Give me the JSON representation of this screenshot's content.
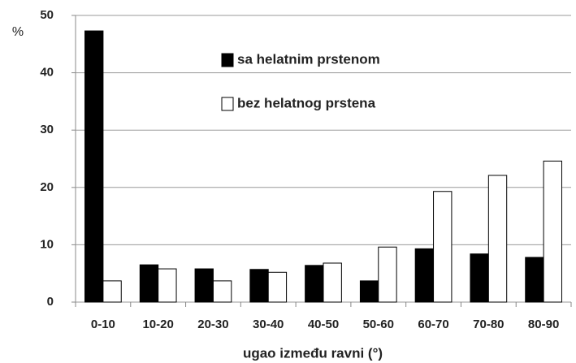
{
  "chart_data": {
    "type": "bar",
    "y_label": "%",
    "x_label": "ugao između ravni (°)",
    "categories": [
      "0-10",
      "10-20",
      "20-30",
      "30-40",
      "40-50",
      "50-60",
      "60-70",
      "70-80",
      "80-90"
    ],
    "series": [
      {
        "name": "sa helatnim prstenom",
        "color": "#000000",
        "values": [
          47.3,
          6.5,
          5.8,
          5.7,
          6.4,
          3.7,
          9.3,
          8.4,
          7.8
        ]
      },
      {
        "name": "bez helatnog prstena",
        "color": "#ffffff",
        "values": [
          3.7,
          5.8,
          3.7,
          5.2,
          6.8,
          9.6,
          19.3,
          22.1,
          24.6
        ]
      }
    ],
    "ylim": [
      0,
      50
    ],
    "yticks": [
      0,
      10,
      20,
      30,
      40,
      50
    ],
    "grid": true,
    "legend": "top"
  }
}
